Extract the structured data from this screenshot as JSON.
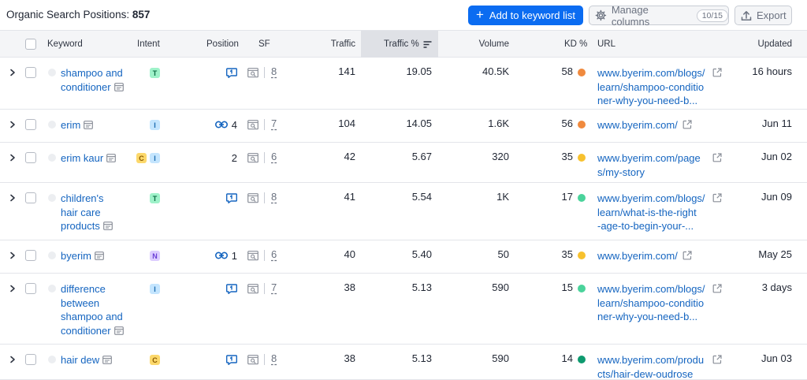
{
  "header": {
    "title_label": "Organic Search Positions:",
    "title_count": "857",
    "add_button_label": "Add to keyword list",
    "manage_button_label": "Manage columns",
    "manage_badge": "10/15",
    "export_button_label": "Export"
  },
  "columns": {
    "keyword": "Keyword",
    "intent": "Intent",
    "position": "Position",
    "sf": "SF",
    "traffic": "Traffic",
    "traffic_pct": "Traffic %",
    "volume": "Volume",
    "kd": "KD %",
    "url": "URL",
    "updated": "Updated"
  },
  "colors": {
    "accent": "#0b6cf1",
    "link": "#1565c0",
    "kd_orange": "#f08a3e",
    "kd_yellow": "#f7c12e",
    "kd_lightgreen": "#4ad39b",
    "kd_darkgreen": "#0e9a6f"
  },
  "rows": [
    {
      "keyword_lines": [
        "shampoo and",
        "conditioner"
      ],
      "intents": [
        "T"
      ],
      "position_icon": "serp-feature-icon",
      "position": "",
      "sf": "8",
      "traffic": "141",
      "traffic_pct": "19.05",
      "volume": "40.5K",
      "kd": "58",
      "kd_color": "#f08a3e",
      "url_lines": [
        "www.byerim.com/blogs/",
        "learn/shampoo-conditio",
        "ner-why-you-need-b..."
      ],
      "updated": "16 hours"
    },
    {
      "keyword_lines": [
        "erim"
      ],
      "intents": [
        "I"
      ],
      "position_icon": "link-icon",
      "position": "4",
      "sf": "7",
      "traffic": "104",
      "traffic_pct": "14.05",
      "volume": "1.6K",
      "kd": "56",
      "kd_color": "#f08a3e",
      "url_lines": [
        "www.byerim.com/"
      ],
      "updated": "Jun 11"
    },
    {
      "keyword_lines": [
        "erim kaur"
      ],
      "intents": [
        "C",
        "I"
      ],
      "position_icon": "",
      "position": "2",
      "sf": "6",
      "traffic": "42",
      "traffic_pct": "5.67",
      "volume": "320",
      "kd": "35",
      "kd_color": "#f7c12e",
      "url_lines": [
        "www.byerim.com/page",
        "s/my-story"
      ],
      "updated": "Jun 02"
    },
    {
      "keyword_lines": [
        "children's",
        "hair care",
        "products"
      ],
      "intents": [
        "T"
      ],
      "position_icon": "serp-feature-icon",
      "position": "",
      "sf": "8",
      "traffic": "41",
      "traffic_pct": "5.54",
      "volume": "1K",
      "kd": "17",
      "kd_color": "#4ad39b",
      "url_lines": [
        "www.byerim.com/blogs/",
        "learn/what-is-the-right",
        "-age-to-begin-your-..."
      ],
      "updated": "Jun 09"
    },
    {
      "keyword_lines": [
        "byerim"
      ],
      "intents": [
        "N"
      ],
      "position_icon": "link-icon",
      "position": "1",
      "sf": "6",
      "traffic": "40",
      "traffic_pct": "5.40",
      "volume": "50",
      "kd": "35",
      "kd_color": "#f7c12e",
      "url_lines": [
        "www.byerim.com/"
      ],
      "updated": "May 25"
    },
    {
      "keyword_lines": [
        "difference",
        "between",
        "shampoo and",
        "conditioner"
      ],
      "intents": [
        "I"
      ],
      "position_icon": "serp-feature-icon",
      "position": "",
      "sf": "7",
      "traffic": "38",
      "traffic_pct": "5.13",
      "volume": "590",
      "kd": "15",
      "kd_color": "#4ad39b",
      "url_lines": [
        "www.byerim.com/blogs/",
        "learn/shampoo-conditio",
        "ner-why-you-need-b..."
      ],
      "updated": "3 days"
    },
    {
      "keyword_lines": [
        "hair dew"
      ],
      "intents": [
        "C"
      ],
      "position_icon": "serp-feature-icon",
      "position": "",
      "sf": "8",
      "traffic": "38",
      "traffic_pct": "5.13",
      "volume": "590",
      "kd": "14",
      "kd_color": "#0e9a6f",
      "url_lines": [
        "www.byerim.com/produ",
        "cts/hair-dew-oudrose"
      ],
      "updated": "Jun 03"
    }
  ]
}
